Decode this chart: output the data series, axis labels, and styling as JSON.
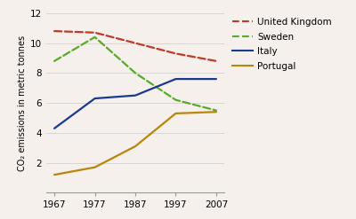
{
  "years": [
    1967,
    1977,
    1987,
    1997,
    2007
  ],
  "series": {
    "United Kingdom": {
      "values": [
        10.8,
        10.7,
        10.0,
        9.3,
        8.8
      ],
      "color": "#c0392b",
      "linestyle": "--"
    },
    "Sweden": {
      "values": [
        8.8,
        10.4,
        8.0,
        6.2,
        5.5
      ],
      "color": "#5aaa2a",
      "linestyle": "--"
    },
    "Italy": {
      "values": [
        4.3,
        6.3,
        6.5,
        7.6,
        7.6
      ],
      "color": "#1a3a8f",
      "linestyle": "-"
    },
    "Portugal": {
      "values": [
        1.2,
        1.7,
        3.1,
        5.3,
        5.4
      ],
      "color": "#b8860b",
      "linestyle": "-"
    }
  },
  "ylabel": "CO₂ emissions in metric tonnes",
  "ylim": [
    0,
    12
  ],
  "yticks": [
    0,
    2,
    4,
    6,
    8,
    10,
    12
  ],
  "background_color": "#f5f0eb",
  "legend_order": [
    "United Kingdom",
    "Sweden",
    "Italy",
    "Portugal"
  ]
}
